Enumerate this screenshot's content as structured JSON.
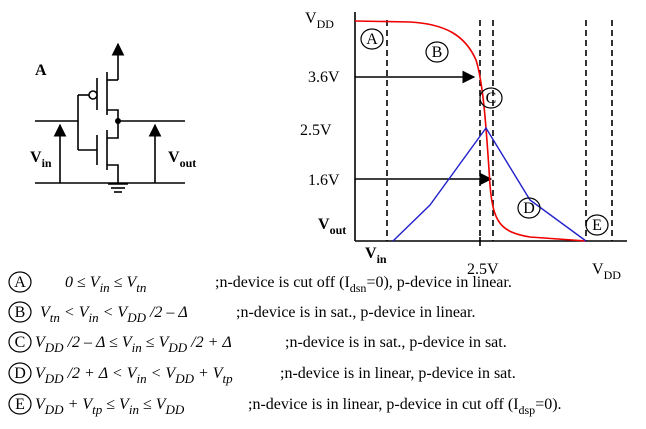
{
  "circuit": {
    "label": "A",
    "vin": [
      {
        "text": "V"
      },
      {
        "sub": "in"
      }
    ],
    "vout": [
      {
        "text": "V"
      },
      {
        "sub": "out"
      }
    ]
  },
  "graph": {
    "y_labels": [
      [
        {
          "text": "V"
        },
        {
          "sub": "DD"
        }
      ],
      [
        {
          "text": "3.6V"
        }
      ],
      [
        {
          "text": "2.5V"
        }
      ],
      [
        {
          "text": "1.6V"
        }
      ],
      [
        {
          "text": "V"
        },
        {
          "sub": "out"
        }
      ]
    ],
    "x_labels": [
      [
        {
          "text": "V"
        },
        {
          "sub": "in"
        }
      ],
      [
        {
          "text": "2.5V"
        }
      ],
      [
        {
          "text": "V"
        },
        {
          "sub": "DD"
        }
      ]
    ],
    "regions": [
      "A",
      "B",
      "C",
      "D",
      "E"
    ]
  },
  "rows": [
    {
      "marker": "A",
      "condition": [
        {
          "text": "0 ≤ V"
        },
        {
          "sub": "in"
        },
        {
          "text": " ≤ V"
        },
        {
          "sub": "tn"
        }
      ],
      "description": [
        {
          "text": ";n-device is cut off (I"
        },
        {
          "sub": "dsn"
        },
        {
          "text": "=0), p-device in linear."
        }
      ]
    },
    {
      "marker": "B",
      "condition": [
        {
          "text": "V"
        },
        {
          "sub": "tn"
        },
        {
          "text": " < V"
        },
        {
          "sub": "in"
        },
        {
          "text": " < V"
        },
        {
          "sub": "DD"
        },
        {
          "text": " /2 – Δ"
        }
      ],
      "description": [
        {
          "text": ";n-device is in sat., p-device in linear."
        }
      ]
    },
    {
      "marker": "C",
      "condition": [
        {
          "text": "V"
        },
        {
          "sub": "DD"
        },
        {
          "text": " /2 – Δ ≤ V"
        },
        {
          "sub": "in"
        },
        {
          "text": " ≤ V"
        },
        {
          "sub": "DD"
        },
        {
          "text": " /2 + Δ"
        }
      ],
      "description": [
        {
          "text": ";n-device is in sat., p-device in sat."
        }
      ]
    },
    {
      "marker": "D",
      "condition": [
        {
          "text": "V"
        },
        {
          "sub": "DD"
        },
        {
          "text": " /2 + Δ < V"
        },
        {
          "sub": "in"
        },
        {
          "text": " < V"
        },
        {
          "sub": "DD"
        },
        {
          "text": " + V"
        },
        {
          "sub": "tp"
        }
      ],
      "description": [
        {
          "text": ";n-device is in linear, p-device in sat."
        }
      ]
    },
    {
      "marker": "E",
      "condition": [
        {
          "text": "V"
        },
        {
          "sub": "DD"
        },
        {
          "text": " + V"
        },
        {
          "sub": "tp"
        },
        {
          "text": " ≤ V"
        },
        {
          "sub": "in"
        },
        {
          "text": " ≤ V"
        },
        {
          "sub": "DD"
        }
      ],
      "description": [
        {
          "text": ";n-device is in linear, p-device in cut off (I"
        },
        {
          "sub": "dsp"
        },
        {
          "text": "=0)."
        }
      ]
    }
  ]
}
